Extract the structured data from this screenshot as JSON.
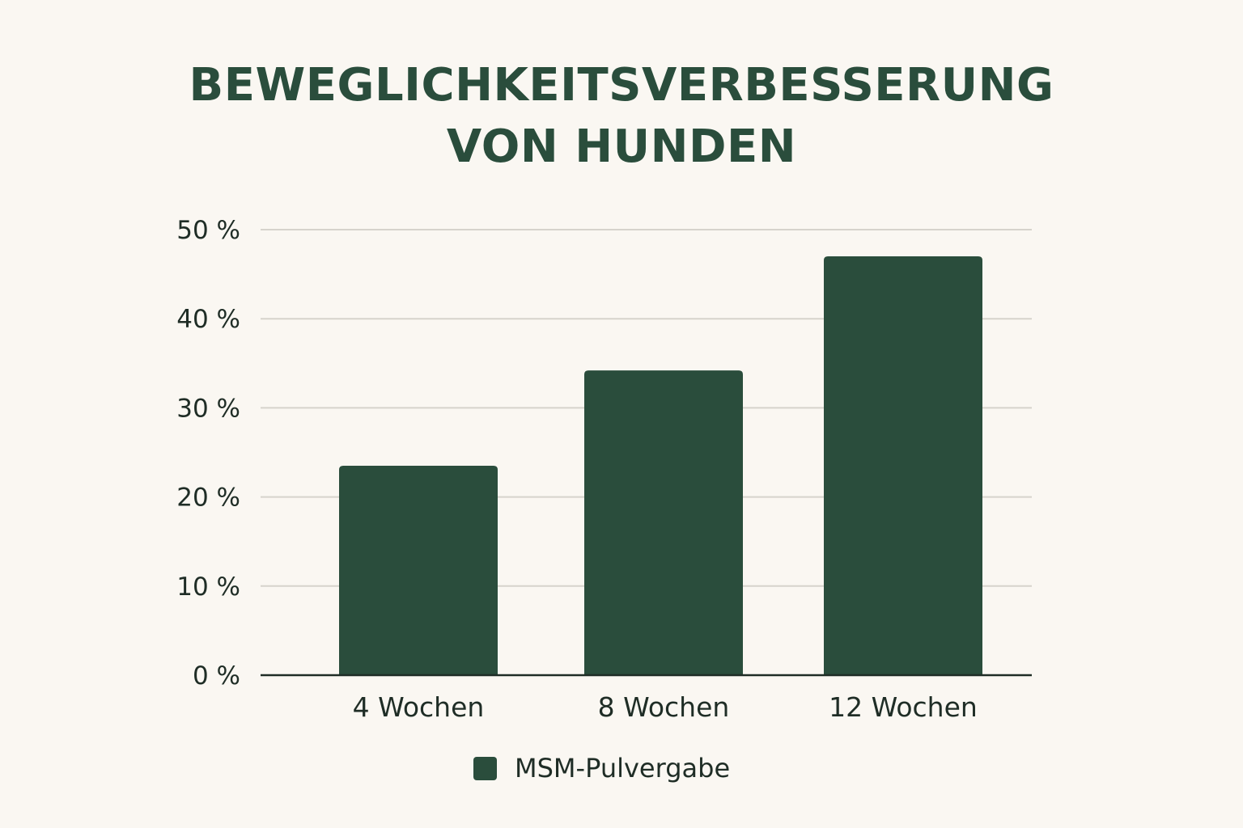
{
  "chart_data": {
    "type": "bar",
    "title_lines": [
      "BEWEGLICHKEITSVERBESSERUNG",
      "VON HUNDEN"
    ],
    "categories": [
      "4 Wochen",
      "8 Wochen",
      "12 Wochen"
    ],
    "series": [
      {
        "name": "MSM-Pulvergabe",
        "values": [
          23.5,
          34.2,
          47
        ]
      }
    ],
    "ylim": [
      0,
      50
    ],
    "yticks": [
      0,
      10,
      20,
      30,
      40,
      50
    ],
    "ytick_labels": [
      "0 %",
      "10 %",
      "20 %",
      "30 %",
      "40 %",
      "50 %"
    ],
    "grid": true,
    "legend_position": "bottom-center",
    "colors": {
      "bar": "#2a4d3c",
      "title": "#2a4d3c",
      "grid": "#d6d3cc",
      "axis": "#1f2d26",
      "background": "#faf7f2"
    }
  }
}
